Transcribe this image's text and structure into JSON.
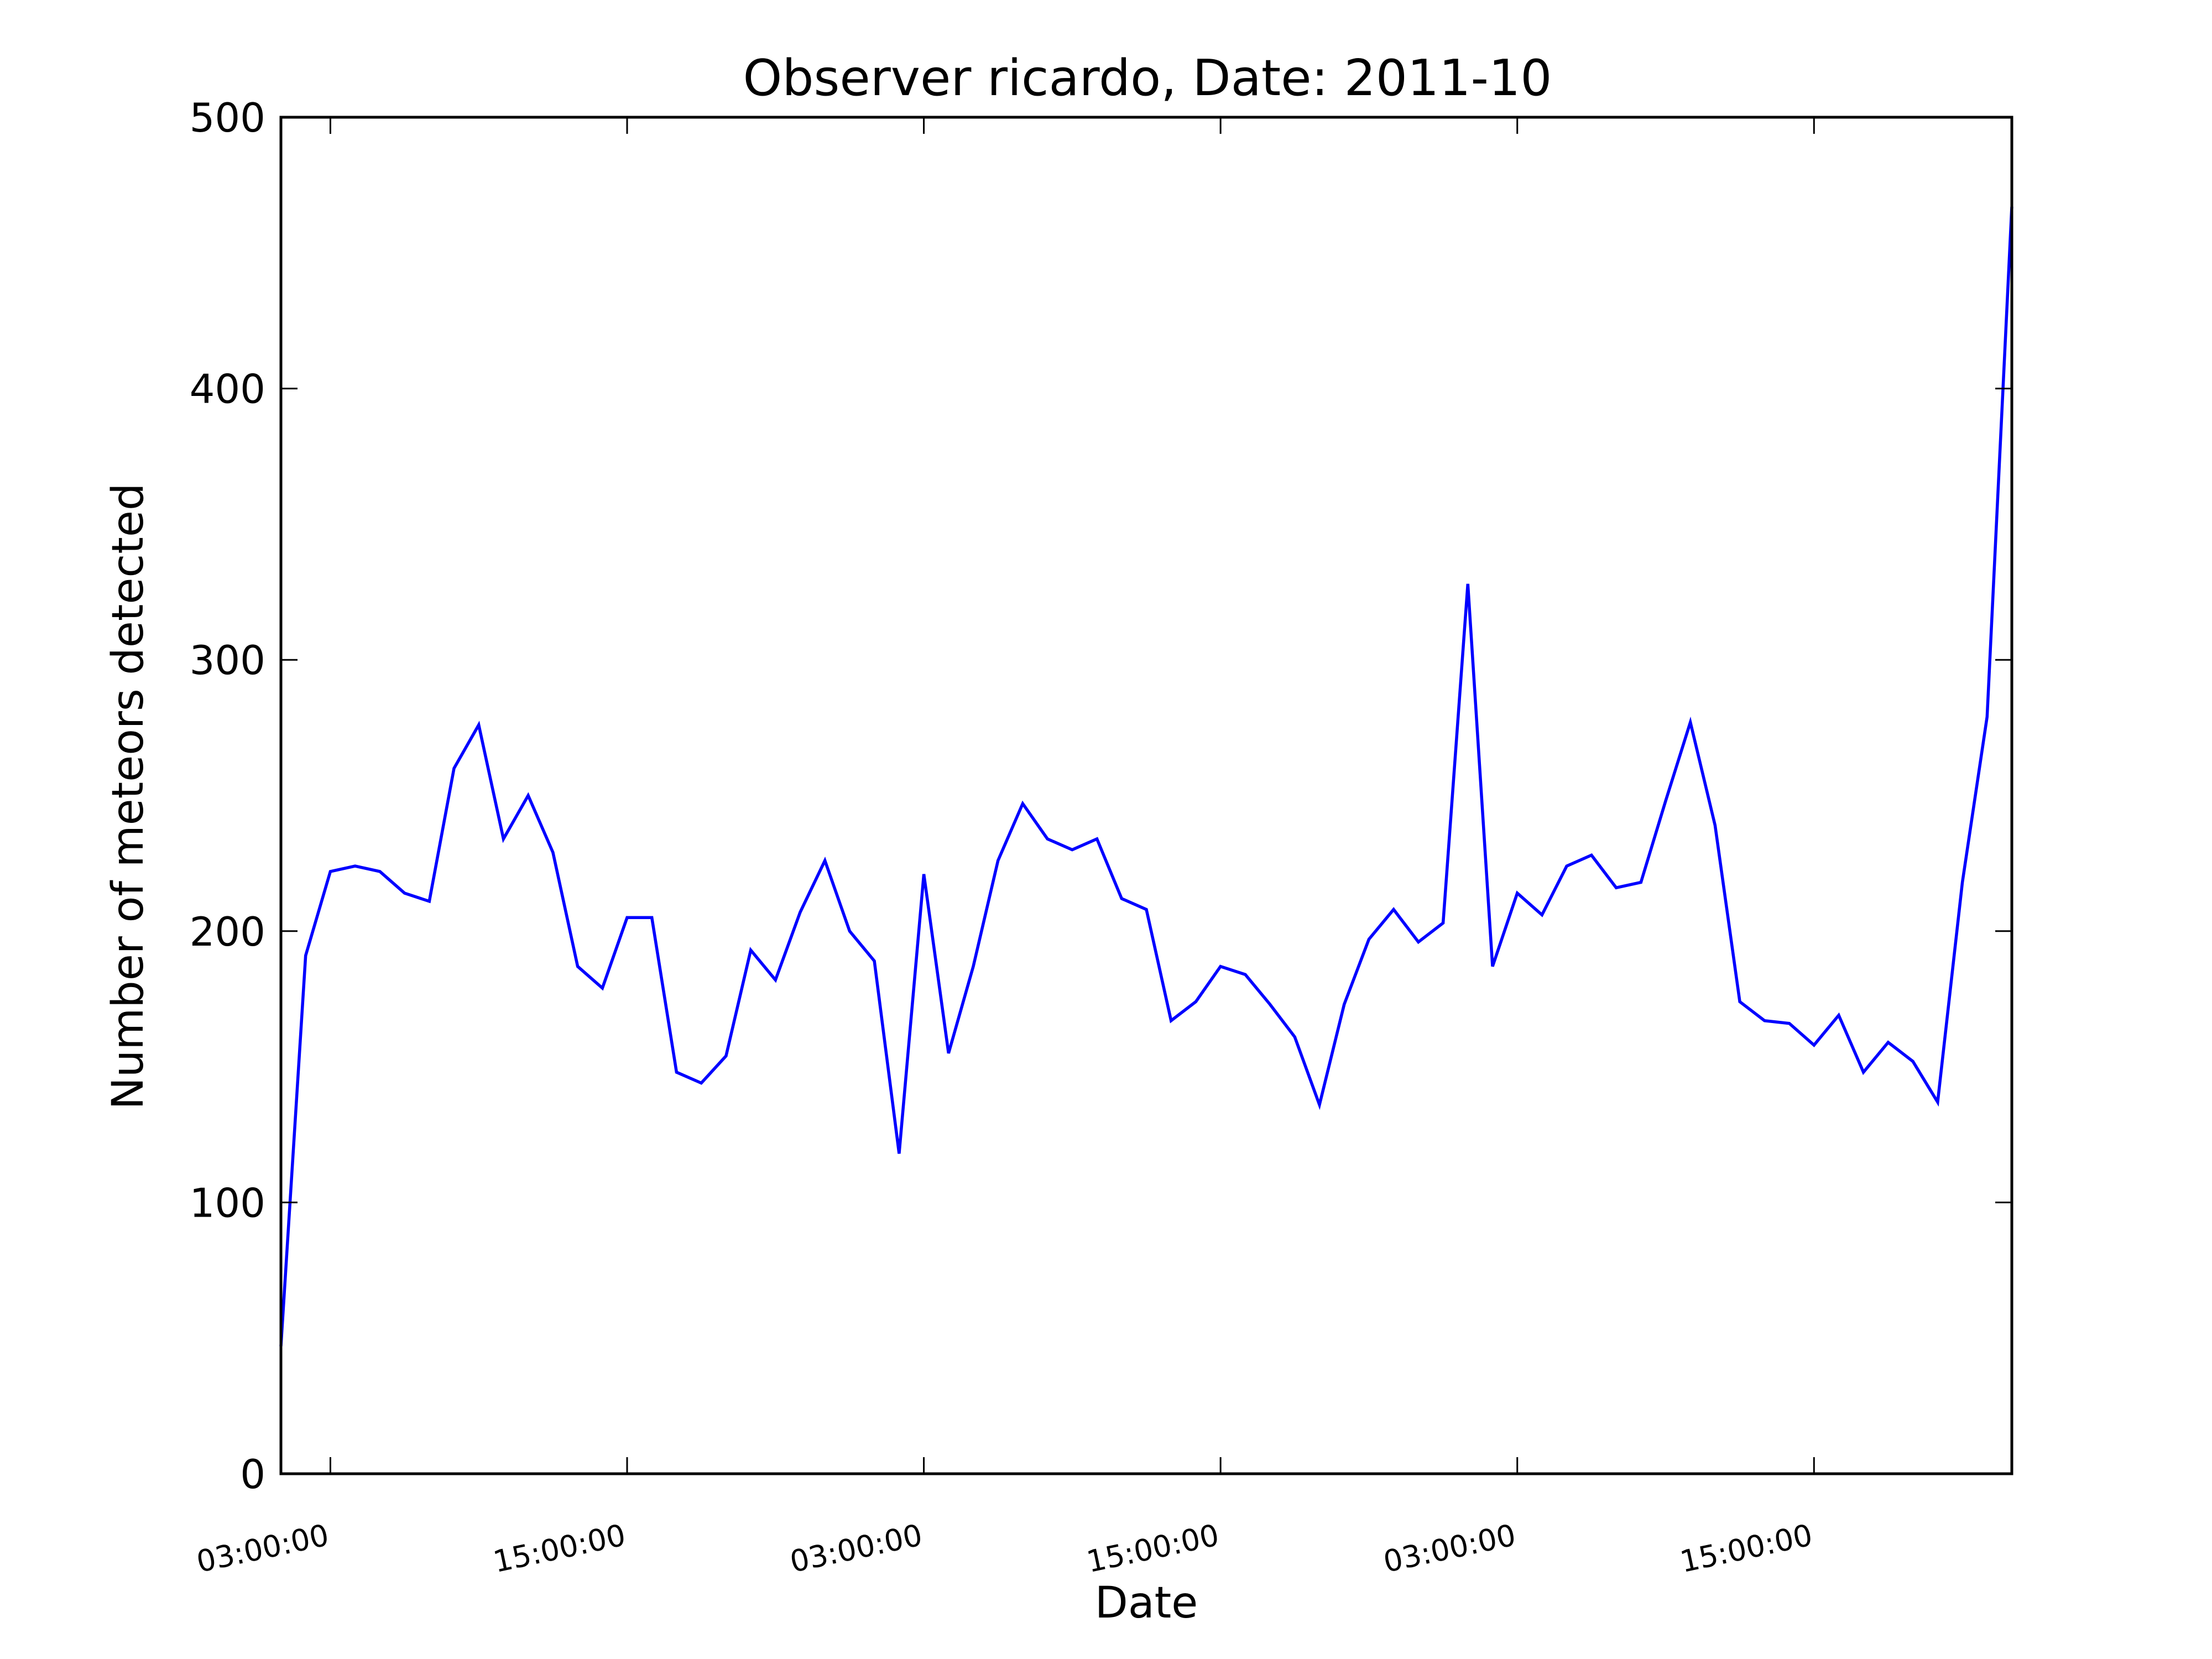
{
  "chart_data": {
    "type": "line",
    "title": "Observer ricardo, Date: 2011-10",
    "xlabel": "Date",
    "ylabel": "Number of meteors detected",
    "ylim": [
      0,
      500
    ],
    "yticks": [
      0,
      100,
      200,
      300,
      400,
      500
    ],
    "x_range_hours": [
      1,
      71
    ],
    "xticks": [
      {
        "hour": 3,
        "label": "03:00:00"
      },
      {
        "hour": 15,
        "label": "15:00:00"
      },
      {
        "hour": 27,
        "label": "03:00:00"
      },
      {
        "hour": 39,
        "label": "15:00:00"
      },
      {
        "hour": 51,
        "label": "03:00:00"
      },
      {
        "hour": 63,
        "label": "15:00:00"
      }
    ],
    "grid": false,
    "line_color": "#0000ff",
    "series": [
      {
        "x": [
          1,
          2,
          3,
          4,
          5,
          6,
          7,
          8,
          9,
          10,
          11,
          12,
          13,
          14,
          15,
          16,
          17,
          18,
          19,
          20,
          21,
          22,
          23,
          24,
          25,
          26,
          27,
          28,
          29,
          30,
          31,
          32,
          33,
          34,
          35,
          36,
          37,
          38,
          39,
          40,
          41,
          42,
          43,
          44,
          45,
          46,
          47,
          48,
          49,
          50,
          51,
          52,
          53,
          54,
          55,
          56,
          57,
          58,
          59,
          60,
          61,
          62,
          63,
          64,
          65,
          66,
          67,
          68,
          69,
          70,
          71
        ],
        "values": [
          47,
          191,
          222,
          224,
          222,
          214,
          211,
          260,
          276,
          234,
          250,
          229,
          187,
          179,
          205,
          205,
          148,
          144,
          154,
          193,
          182,
          207,
          226,
          200,
          189,
          118,
          221,
          155,
          187,
          226,
          247,
          234,
          230,
          234,
          212,
          208,
          167,
          174,
          187,
          184,
          173,
          161,
          136,
          173,
          197,
          208,
          196,
          203,
          328,
          187,
          214,
          206,
          224,
          228,
          216,
          218,
          248,
          277,
          239,
          174,
          167,
          166,
          158,
          169,
          148,
          159,
          152,
          137,
          218,
          279,
          467
        ]
      }
    ]
  }
}
